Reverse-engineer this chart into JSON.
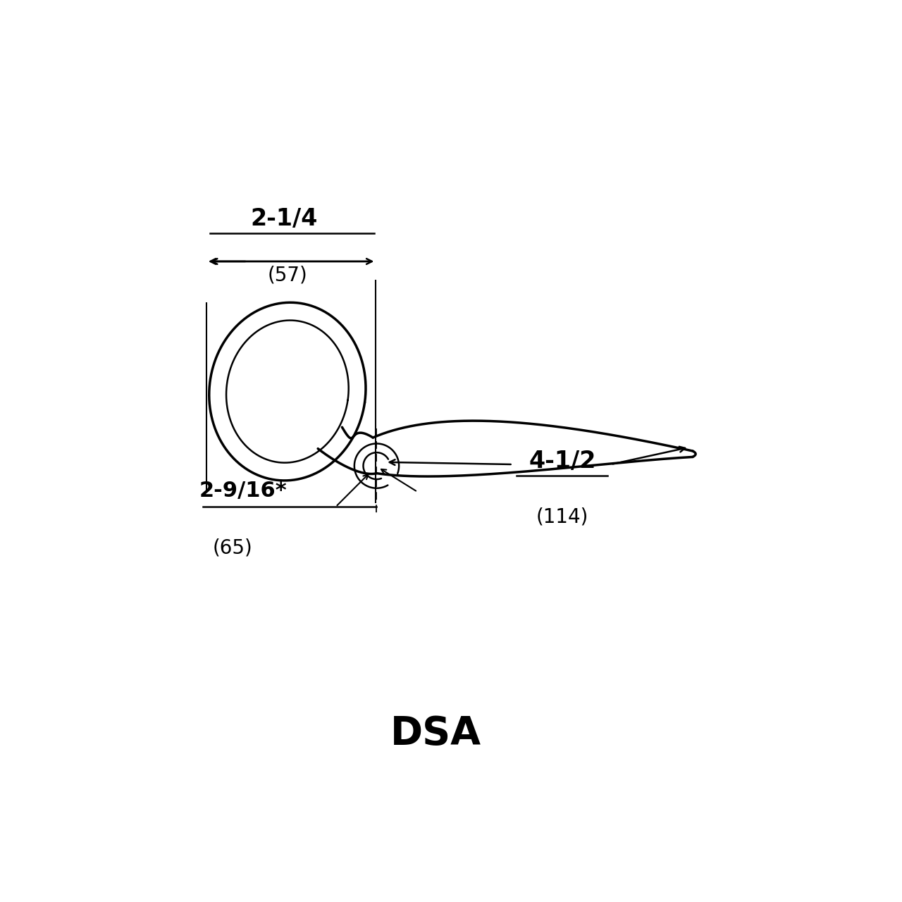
{
  "bg_color": "#ffffff",
  "line_color": "#000000",
  "title": "DSA",
  "title_fontsize": 40,
  "title_fontweight": "bold",
  "dim1_label": "2-1/4",
  "dim1_sub": "(57)",
  "dim2_label": "2-9/16*",
  "dim2_sub": "(65)",
  "dim3_label": "4-1/2",
  "dim3_sub": "(114)",
  "figsize": [
    12.8,
    12.8
  ],
  "dpi": 100,
  "xlim": [
    0,
    12
  ],
  "ylim": [
    0,
    12
  ]
}
